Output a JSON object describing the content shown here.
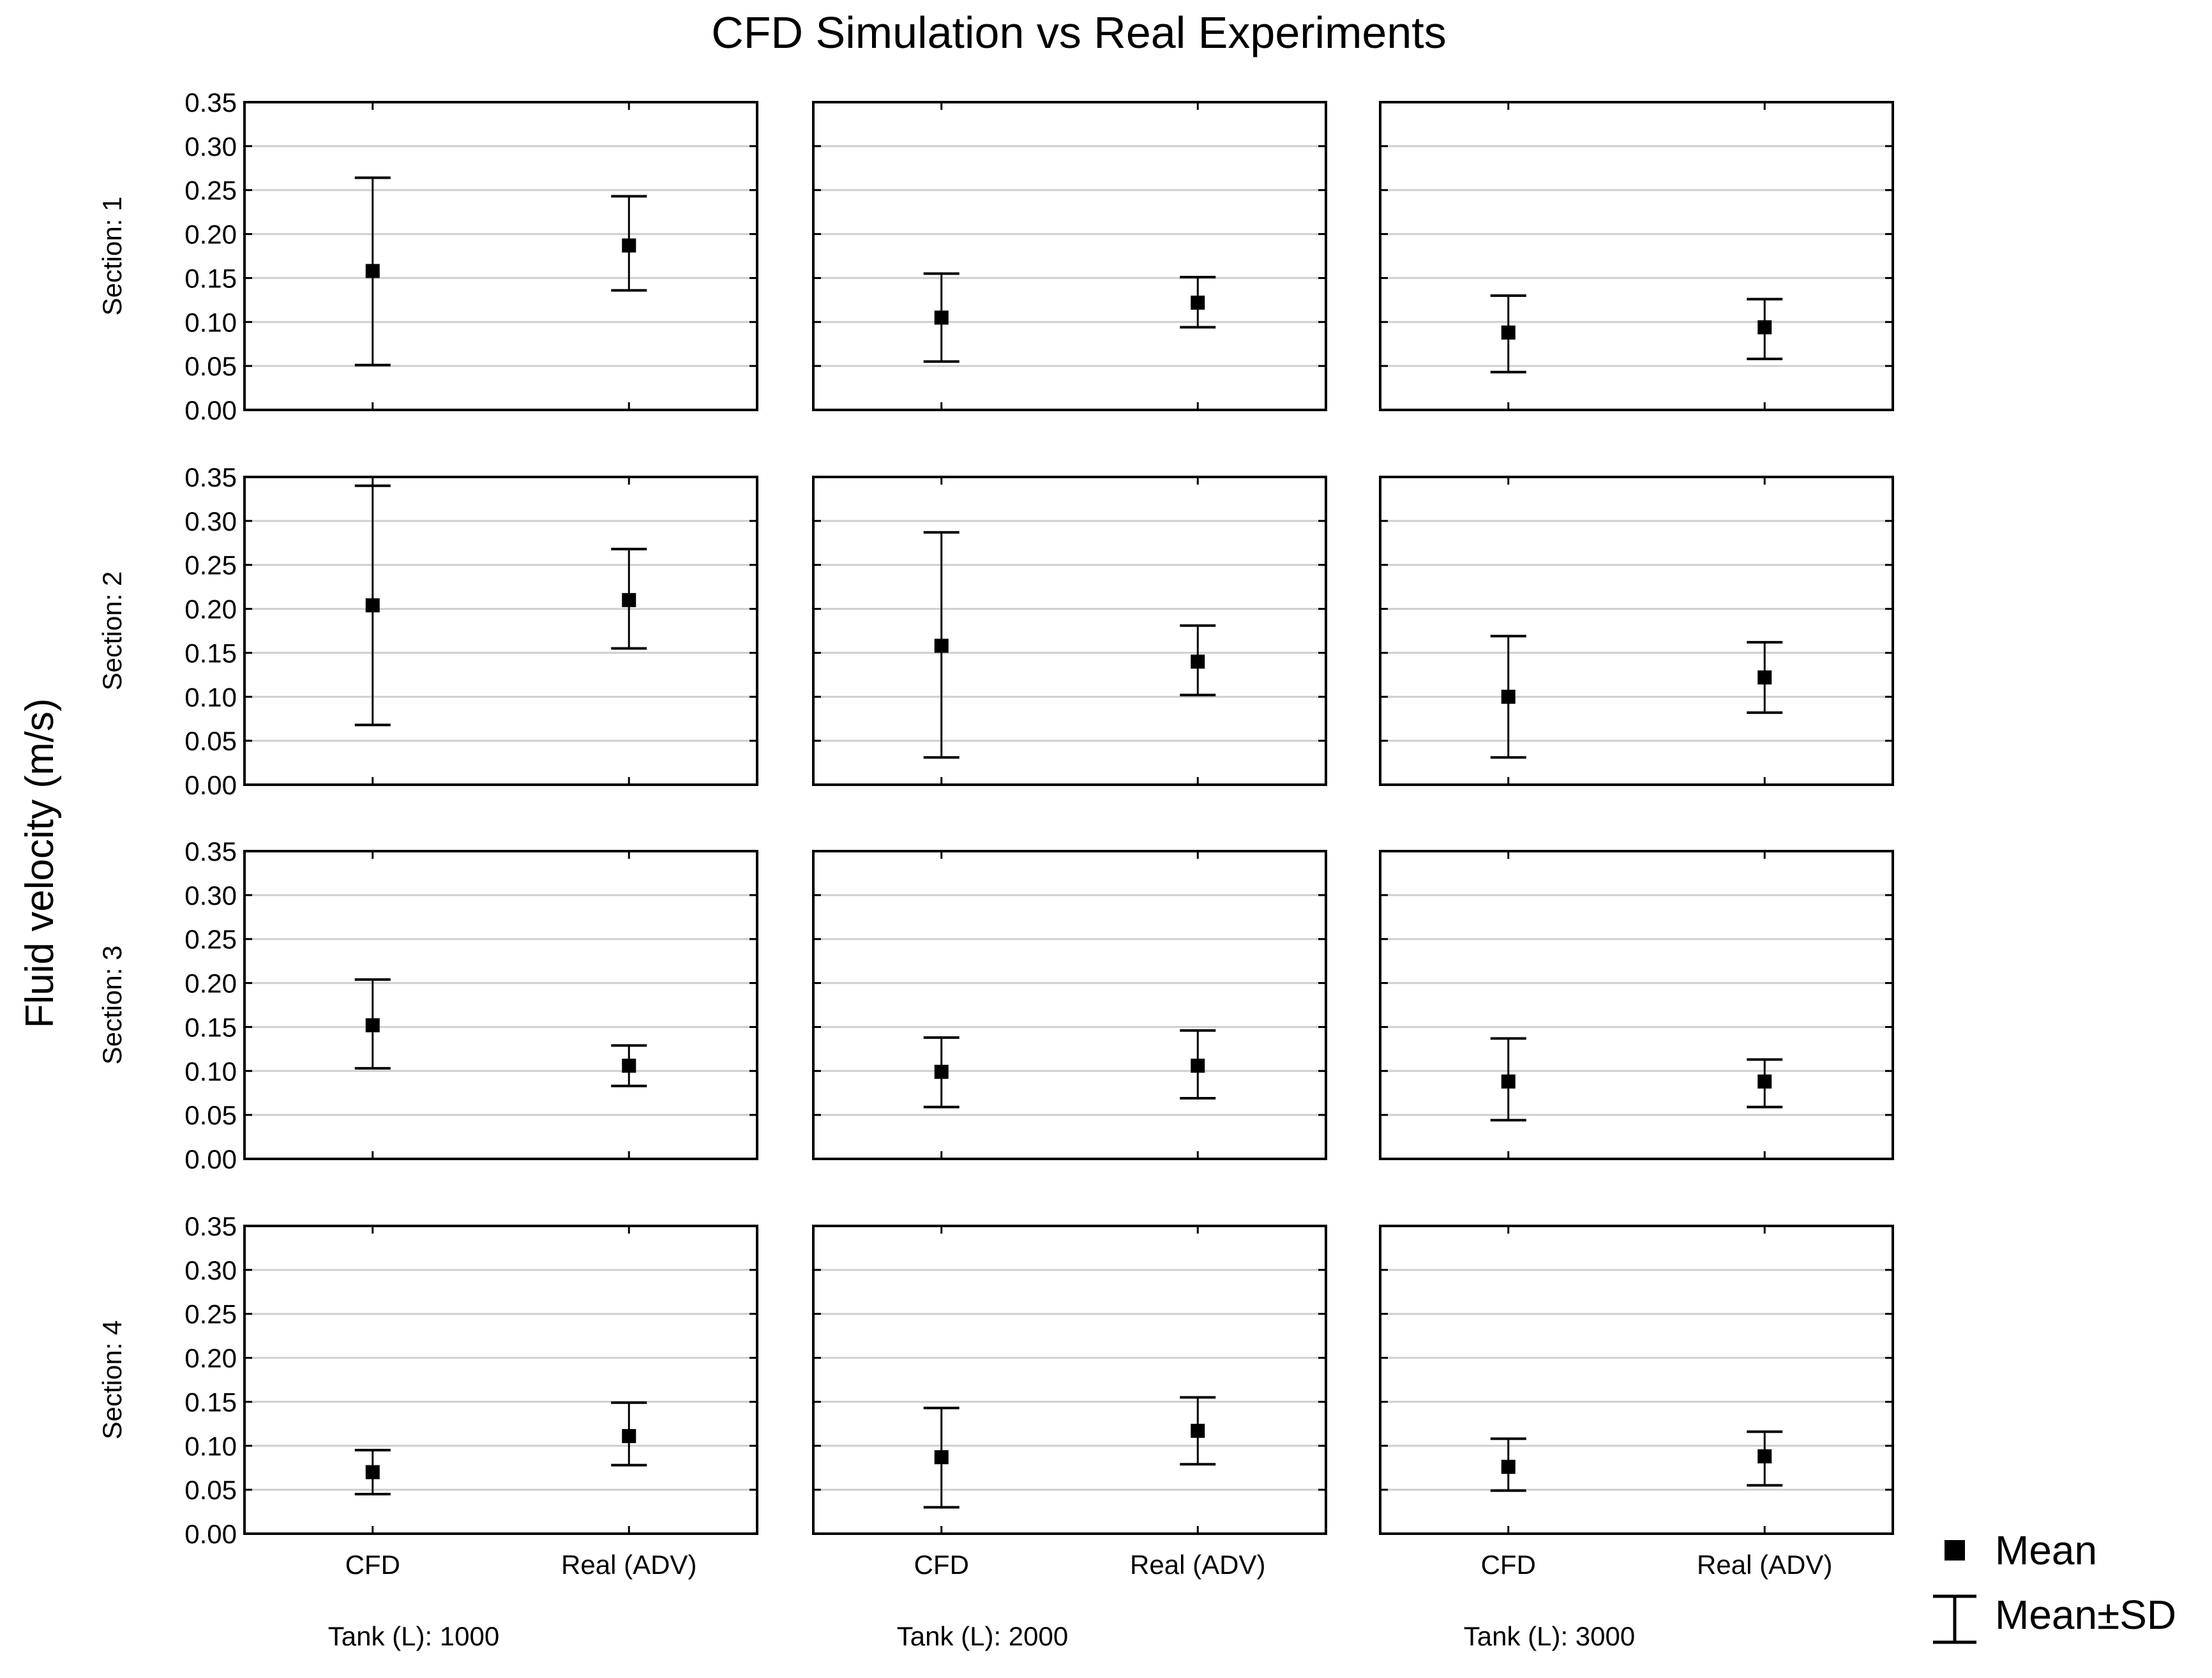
{
  "chart_data": {
    "type": "errorbar-grid",
    "title": "CFD Simulation vs Real Experiments",
    "ylabel": "Fluid velocity (m/s)",
    "ylim": [
      0,
      0.35
    ],
    "yticks": [
      "0.00",
      "0.05",
      "0.10",
      "0.15",
      "0.20",
      "0.25",
      "0.30",
      "0.35"
    ],
    "categories": [
      "CFD",
      "Real (ADV)"
    ],
    "rows": [
      "Section: 1",
      "Section: 2",
      "Section: 3",
      "Section: 4"
    ],
    "columns": [
      "Tank (L):  1000",
      "Tank (L):  2000",
      "Tank (L):  3000"
    ],
    "legend": {
      "mean": "Mean",
      "sd": "Mean±SD",
      "placement": "bottom-right"
    },
    "panels": [
      [
        [
          {
            "mean": 0.158,
            "low": 0.051,
            "high": 0.264
          },
          {
            "mean": 0.187,
            "low": 0.136,
            "high": 0.243
          }
        ],
        [
          {
            "mean": 0.105,
            "low": 0.055,
            "high": 0.155
          },
          {
            "mean": 0.122,
            "low": 0.094,
            "high": 0.151
          }
        ],
        [
          {
            "mean": 0.088,
            "low": 0.043,
            "high": 0.13
          },
          {
            "mean": 0.094,
            "low": 0.058,
            "high": 0.126
          }
        ]
      ],
      [
        [
          {
            "mean": 0.204,
            "low": 0.068,
            "high": 0.34
          },
          {
            "mean": 0.21,
            "low": 0.155,
            "high": 0.268
          }
        ],
        [
          {
            "mean": 0.158,
            "low": 0.031,
            "high": 0.287
          },
          {
            "mean": 0.14,
            "low": 0.102,
            "high": 0.181
          }
        ],
        [
          {
            "mean": 0.1,
            "low": 0.031,
            "high": 0.169
          },
          {
            "mean": 0.122,
            "low": 0.082,
            "high": 0.162
          }
        ]
      ],
      [
        [
          {
            "mean": 0.152,
            "low": 0.103,
            "high": 0.204
          },
          {
            "mean": 0.106,
            "low": 0.083,
            "high": 0.129
          }
        ],
        [
          {
            "mean": 0.099,
            "low": 0.059,
            "high": 0.138
          },
          {
            "mean": 0.106,
            "low": 0.069,
            "high": 0.146
          }
        ],
        [
          {
            "mean": 0.088,
            "low": 0.044,
            "high": 0.137
          },
          {
            "mean": 0.088,
            "low": 0.059,
            "high": 0.113
          }
        ]
      ],
      [
        [
          {
            "mean": 0.07,
            "low": 0.045,
            "high": 0.095
          },
          {
            "mean": 0.111,
            "low": 0.078,
            "high": 0.149
          }
        ],
        [
          {
            "mean": 0.087,
            "low": 0.03,
            "high": 0.143
          },
          {
            "mean": 0.117,
            "low": 0.079,
            "high": 0.155
          }
        ],
        [
          {
            "mean": 0.076,
            "low": 0.049,
            "high": 0.108
          },
          {
            "mean": 0.088,
            "low": 0.055,
            "high": 0.116
          }
        ]
      ]
    ]
  }
}
